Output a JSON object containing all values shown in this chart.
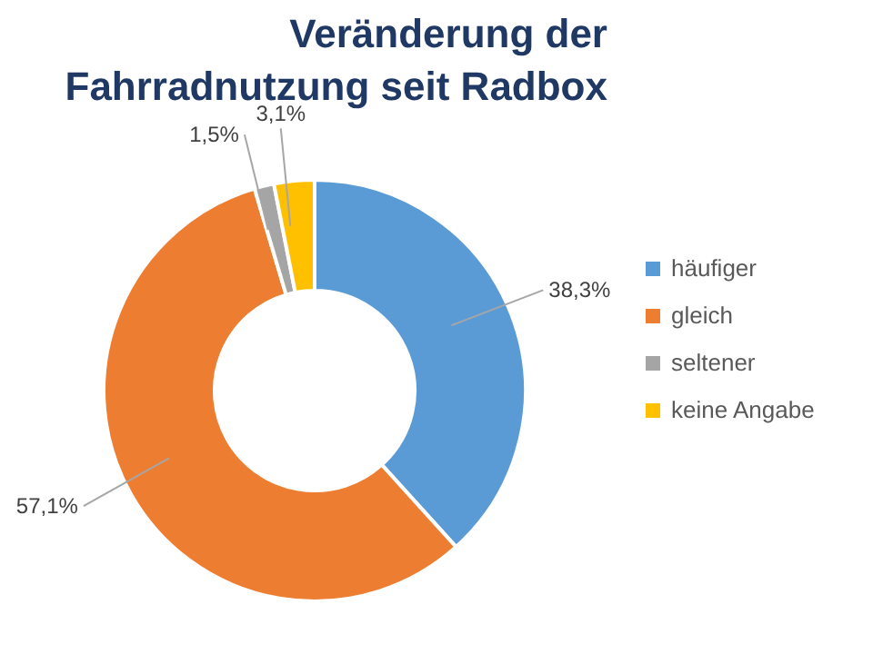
{
  "chart_data": {
    "type": "donut",
    "title": "Veränderung der Fahrradnutzung seit Radbox",
    "categories": [
      "häufiger",
      "gleich",
      "seltener",
      "keine Angabe"
    ],
    "values": [
      38.3,
      57.1,
      1.5,
      3.1
    ],
    "colors": [
      "#5b9bd5",
      "#ed7d31",
      "#a5a5a5",
      "#ffc000"
    ],
    "value_labels": [
      "38,3%",
      "57,1%",
      "1,5%",
      "3,1%"
    ],
    "legend": "right"
  }
}
